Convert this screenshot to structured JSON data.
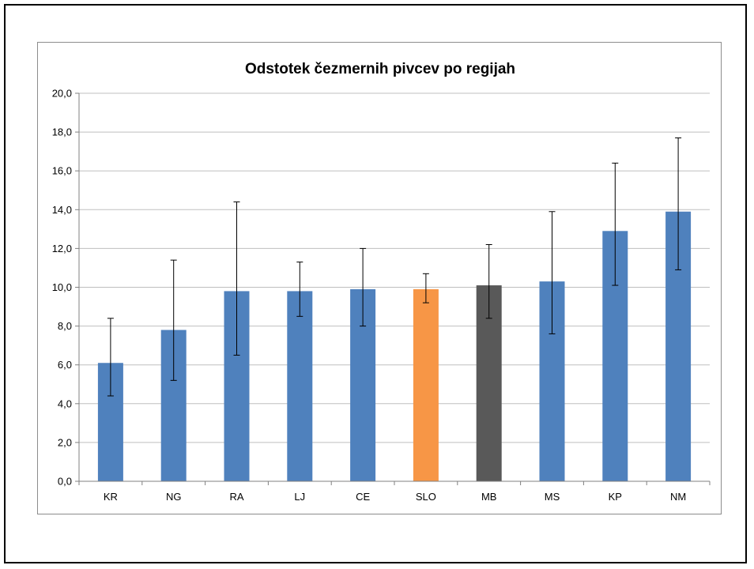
{
  "chart_data": {
    "type": "bar",
    "title": "Odstotek čezmernih pivcev po regijah",
    "xlabel": "",
    "ylabel": "",
    "categories": [
      "KR",
      "NG",
      "RA",
      "LJ",
      "CE",
      "SLO",
      "MB",
      "MS",
      "KP",
      "NM"
    ],
    "values": [
      6.1,
      7.8,
      9.8,
      9.8,
      9.9,
      9.9,
      10.1,
      10.3,
      12.9,
      13.9
    ],
    "error_low": [
      4.4,
      5.2,
      6.5,
      8.5,
      8.0,
      9.2,
      8.4,
      7.6,
      10.1,
      10.9
    ],
    "error_high": [
      8.4,
      11.4,
      14.4,
      11.3,
      12.0,
      10.7,
      12.2,
      13.9,
      16.4,
      17.7
    ],
    "bar_colors": [
      "#4f81bd",
      "#4f81bd",
      "#4f81bd",
      "#4f81bd",
      "#4f81bd",
      "#f79646",
      "#595959",
      "#4f81bd",
      "#4f81bd",
      "#4f81bd"
    ],
    "ylim": [
      0,
      20
    ],
    "yticks": [
      "0,0",
      "2,0",
      "4,0",
      "6,0",
      "8,0",
      "10,0",
      "12,0",
      "14,0",
      "16,0",
      "18,0",
      "20,0"
    ],
    "grid": true,
    "legend": "none"
  }
}
